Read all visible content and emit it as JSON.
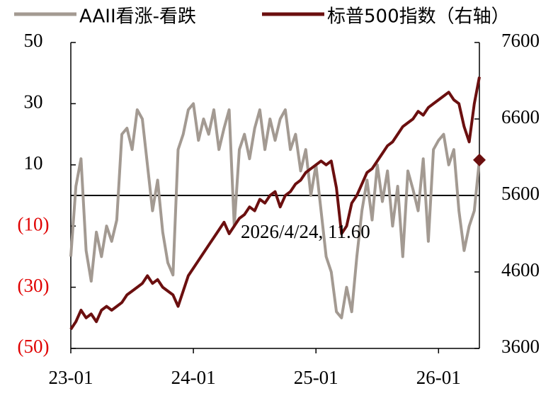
{
  "chart_data": {
    "type": "line",
    "categories": [
      "23-01",
      null,
      null,
      null,
      null,
      null,
      null,
      null,
      null,
      null,
      null,
      null,
      null,
      null,
      null,
      null,
      null,
      null,
      null,
      null,
      null,
      null,
      null,
      null,
      "24-01",
      null,
      null,
      null,
      null,
      null,
      null,
      null,
      null,
      null,
      null,
      null,
      null,
      null,
      null,
      null,
      null,
      null,
      null,
      null,
      null,
      null,
      null,
      null,
      "25-01",
      null,
      null,
      null,
      null,
      null,
      null,
      null,
      null,
      null,
      null,
      null,
      null,
      null,
      null,
      null,
      null,
      null,
      null,
      null,
      null,
      null,
      null,
      null,
      "26-01",
      null,
      null,
      null,
      null,
      null,
      null,
      null,
      null
    ],
    "series": [
      {
        "name": "AAII看涨-看跌",
        "color": "#a39a92",
        "axis": "y",
        "values": [
          -20,
          3,
          12,
          -18,
          -28,
          -12,
          -20,
          -10,
          -15,
          -8,
          20,
          22,
          15,
          28,
          25,
          10,
          -5,
          5,
          -12,
          -22,
          -26,
          15,
          20,
          28,
          30,
          18,
          25,
          20,
          28,
          15,
          22,
          28,
          -10,
          15,
          20,
          12,
          22,
          28,
          15,
          25,
          18,
          25,
          28,
          15,
          20,
          8,
          15,
          0,
          10,
          -5,
          -20,
          -25,
          -38,
          -40,
          -30,
          -38,
          -20,
          -5,
          5,
          -8,
          10,
          -2,
          8,
          -10,
          3,
          -20,
          8,
          2,
          -5,
          12,
          -15,
          15,
          18,
          20,
          10,
          15,
          -5,
          -18,
          -10,
          -5,
          11.6
        ]
      },
      {
        "name": "标普500指数（右轴）",
        "color": "#6b0f0f",
        "axis": "y2",
        "values": [
          3850,
          3950,
          4100,
          4000,
          4050,
          3950,
          4100,
          4150,
          4100,
          4150,
          4200,
          4300,
          4350,
          4400,
          4450,
          4550,
          4450,
          4500,
          4400,
          4350,
          4300,
          4150,
          4350,
          4550,
          4650,
          4750,
          4850,
          4950,
          5050,
          5150,
          5250,
          5100,
          5200,
          5300,
          5350,
          5450,
          5400,
          5550,
          5500,
          5600,
          5650,
          5450,
          5600,
          5650,
          5750,
          5800,
          5900,
          5950,
          6000,
          6050,
          6000,
          6050,
          5700,
          5100,
          5200,
          5500,
          5600,
          5750,
          5900,
          5950,
          6050,
          6150,
          6250,
          6300,
          6400,
          6500,
          6550,
          6600,
          6700,
          6650,
          6750,
          6800,
          6850,
          6900,
          6950,
          6850,
          6800,
          6500,
          6300,
          6800,
          7150
        ]
      }
    ],
    "ylim": [
      -50,
      50
    ],
    "yticks": [
      50,
      30,
      10,
      {
        "value": -10,
        "label": "(10)"
      },
      {
        "value": -30,
        "label": "(30)"
      },
      {
        "value": -50,
        "label": "(50)"
      }
    ],
    "y2lim": [
      3600,
      7600
    ],
    "y2ticks": [
      7600,
      6600,
      5600,
      4600,
      3600
    ],
    "negative_tick_color": "#e00000",
    "reference_line": 0,
    "last_point_marker": "diamond",
    "annotation": "2026/4/24, 11.60",
    "legend": "top"
  }
}
